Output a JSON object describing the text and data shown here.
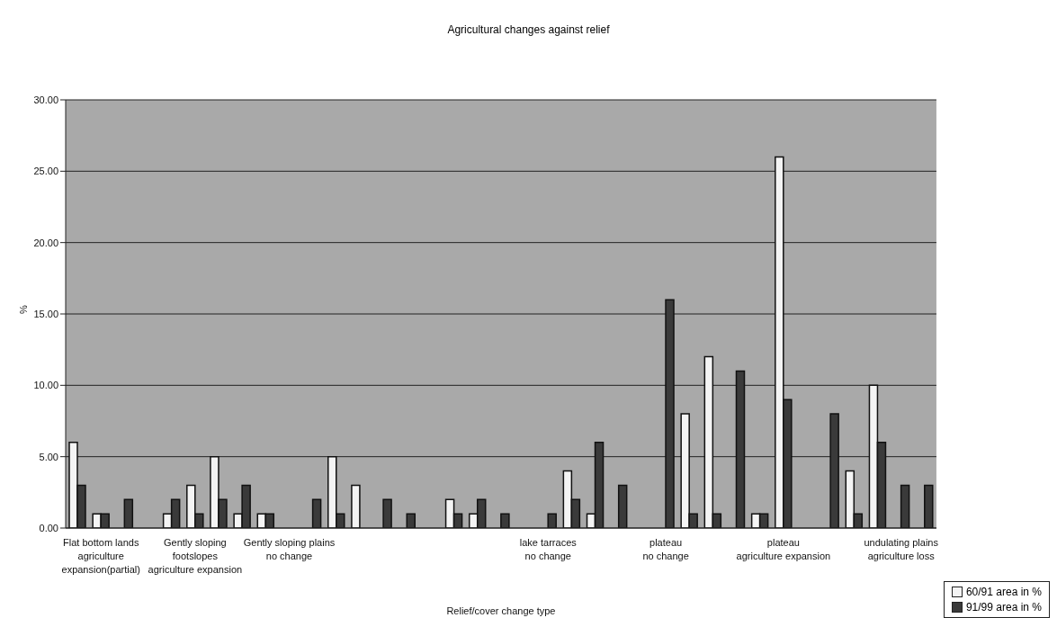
{
  "chart_data": {
    "type": "bar",
    "title": "Agricultural changes against relief",
    "xlabel": "Relief/cover change type",
    "ylabel": "%",
    "categories": [
      null,
      "Flat bottom lands\nagriculture\nexpansion(partial)",
      null,
      null,
      null,
      "Gently sloping\nfootslopes\nagriculture expansion",
      null,
      null,
      null,
      "Gently sloping plains\nno change",
      null,
      null,
      null,
      null,
      null,
      null,
      null,
      null,
      null,
      null,
      "lake tarraces\nno change",
      null,
      null,
      null,
      null,
      "plateau\nno change",
      null,
      null,
      null,
      null,
      "plateau\nagriculture expansion",
      null,
      null,
      null,
      null,
      "undulating plains\nagriculture loss",
      null
    ],
    "series": [
      {
        "name": "60/91 area in %",
        "color": "#f4f4f4",
        "values": [
          6,
          1,
          null,
          null,
          1,
          3,
          5,
          1,
          1,
          null,
          null,
          5,
          3,
          null,
          null,
          null,
          2,
          1,
          null,
          null,
          null,
          4,
          1,
          null,
          null,
          null,
          8,
          12,
          null,
          1,
          26,
          null,
          null,
          4,
          10,
          null,
          null
        ]
      },
      {
        "name": "91/99 area in %",
        "color": "#3a3a3a",
        "values": [
          3,
          1,
          2,
          null,
          2,
          1,
          2,
          3,
          1,
          null,
          2,
          1,
          null,
          2,
          1,
          null,
          1,
          2,
          1,
          null,
          1,
          2,
          6,
          3,
          null,
          16,
          1,
          1,
          11,
          1,
          9,
          null,
          8,
          1,
          6,
          3,
          3
        ]
      }
    ],
    "ylim": [
      0,
      30
    ],
    "yticks": [
      {
        "value": 0,
        "label": "0.00"
      },
      {
        "value": 5,
        "label": "5.00"
      },
      {
        "value": 10,
        "label": "10.00"
      },
      {
        "value": 15,
        "label": "15.00"
      },
      {
        "value": 20,
        "label": "20.00"
      },
      {
        "value": 25,
        "label": "25.00"
      },
      {
        "value": 30,
        "label": "30.00"
      }
    ],
    "grid": "y",
    "legend": "bottom right"
  }
}
